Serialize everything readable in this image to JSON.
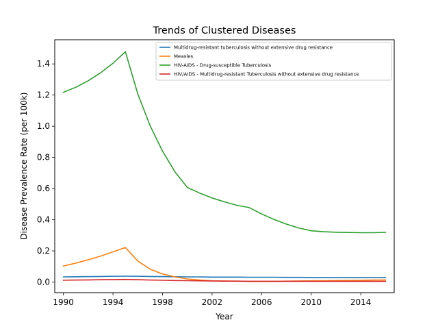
{
  "chart_data": {
    "type": "line",
    "title": "Trends of Clustered Diseases",
    "xlabel": "Year",
    "ylabel": "Disease Prevalence Rate (per 100k)",
    "xlim": [
      1989.3,
      2016.7
    ],
    "ylim": [
      -0.068,
      1.555
    ],
    "xticks": [
      1990,
      1994,
      1998,
      2002,
      2006,
      2010,
      2014
    ],
    "yticks": [
      0.0,
      0.2,
      0.4,
      0.6,
      0.8,
      1.0,
      1.2,
      1.4
    ],
    "ytick_labels": [
      "0.0",
      "0.2",
      "0.4",
      "0.6",
      "0.8",
      "1.0",
      "1.2",
      "1.4"
    ],
    "legend_position": "top-right",
    "grid": false,
    "x": [
      1990,
      1991,
      1992,
      1993,
      1994,
      1995,
      1996,
      1997,
      1998,
      1999,
      2000,
      2001,
      2002,
      2003,
      2004,
      2005,
      2006,
      2007,
      2008,
      2009,
      2010,
      2011,
      2012,
      2013,
      2014,
      2015,
      2016
    ],
    "series": [
      {
        "name": "Multidrug-resistant tuberculosis without extensive drug resistance",
        "color": "#1f77b4",
        "values": [
          0.033,
          0.034,
          0.035,
          0.036,
          0.037,
          0.038,
          0.037,
          0.036,
          0.035,
          0.034,
          0.033,
          0.033,
          0.032,
          0.032,
          0.032,
          0.031,
          0.031,
          0.031,
          0.03,
          0.03,
          0.029,
          0.029,
          0.029,
          0.029,
          0.029,
          0.029,
          0.029
        ]
      },
      {
        "name": "Measles",
        "color": "#ff7f0e",
        "values": [
          0.103,
          0.122,
          0.143,
          0.167,
          0.194,
          0.222,
          0.135,
          0.083,
          0.052,
          0.033,
          0.02,
          0.013,
          0.009,
          0.007,
          0.006,
          0.005,
          0.005,
          0.005,
          0.006,
          0.007,
          0.008,
          0.009,
          0.01,
          0.011,
          0.012,
          0.013,
          0.014
        ]
      },
      {
        "name": "HIV-AIDS - Drug-susceptible Tuberculosis",
        "color": "#2ca02c",
        "values": [
          1.218,
          1.25,
          1.292,
          1.343,
          1.404,
          1.478,
          1.208,
          1.003,
          0.84,
          0.708,
          0.607,
          0.571,
          0.54,
          0.515,
          0.493,
          0.478,
          0.437,
          0.402,
          0.372,
          0.347,
          0.329,
          0.323,
          0.32,
          0.318,
          0.317,
          0.317,
          0.319
        ]
      },
      {
        "name": "HIV/AIDS - Multidrug-resistant Tuberculosis without extensive drug resistance",
        "color": "#d62728",
        "values": [
          0.012,
          0.013,
          0.014,
          0.015,
          0.016,
          0.017,
          0.015,
          0.013,
          0.012,
          0.01,
          0.009,
          0.008,
          0.007,
          0.006,
          0.006,
          0.005,
          0.005,
          0.005,
          0.005,
          0.005,
          0.005,
          0.005,
          0.005,
          0.005,
          0.005,
          0.005,
          0.005
        ]
      }
    ]
  }
}
